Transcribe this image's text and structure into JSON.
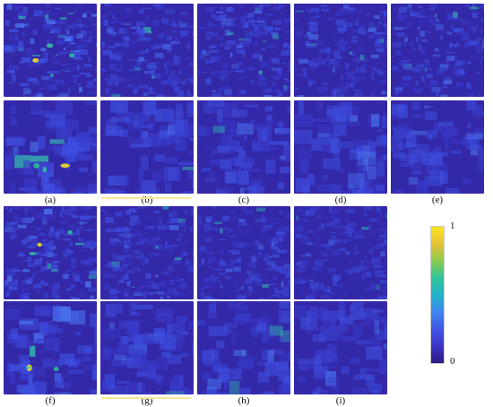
{
  "figure": {
    "panels": [
      {
        "label": "(a)"
      },
      {
        "label": "(b)"
      },
      {
        "label": "(c)"
      },
      {
        "label": "(d)"
      },
      {
        "label": "(e)"
      },
      {
        "label": "(f)"
      },
      {
        "label": "(g)"
      },
      {
        "label": "(h)"
      },
      {
        "label": "(i)"
      }
    ],
    "colorbar": {
      "max_label": "1",
      "min_label": "0",
      "colors": [
        "#2d1a82",
        "#3b35c8",
        "#3f55e6",
        "#3f86f0",
        "#1fb3c8",
        "#2fc49a",
        "#8ccc4e",
        "#e7c137",
        "#fbe51f"
      ]
    }
  }
}
